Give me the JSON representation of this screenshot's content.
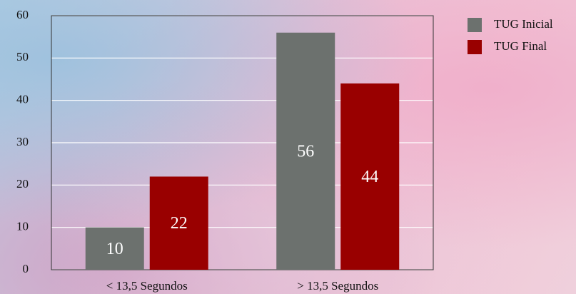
{
  "chart_data": {
    "type": "bar",
    "categories": [
      "< 13,5 Segundos",
      "> 13,5 Segundos"
    ],
    "series": [
      {
        "name": "TUG Inicial",
        "color": "#6c716e",
        "values": [
          10,
          56
        ]
      },
      {
        "name": "TUG Final",
        "color": "#990000",
        "values": [
          22,
          44
        ]
      }
    ],
    "ylim": [
      0,
      60
    ],
    "yticks": [
      0,
      10,
      20,
      30,
      40,
      50,
      60
    ],
    "grid": true,
    "legend": "top-right"
  }
}
